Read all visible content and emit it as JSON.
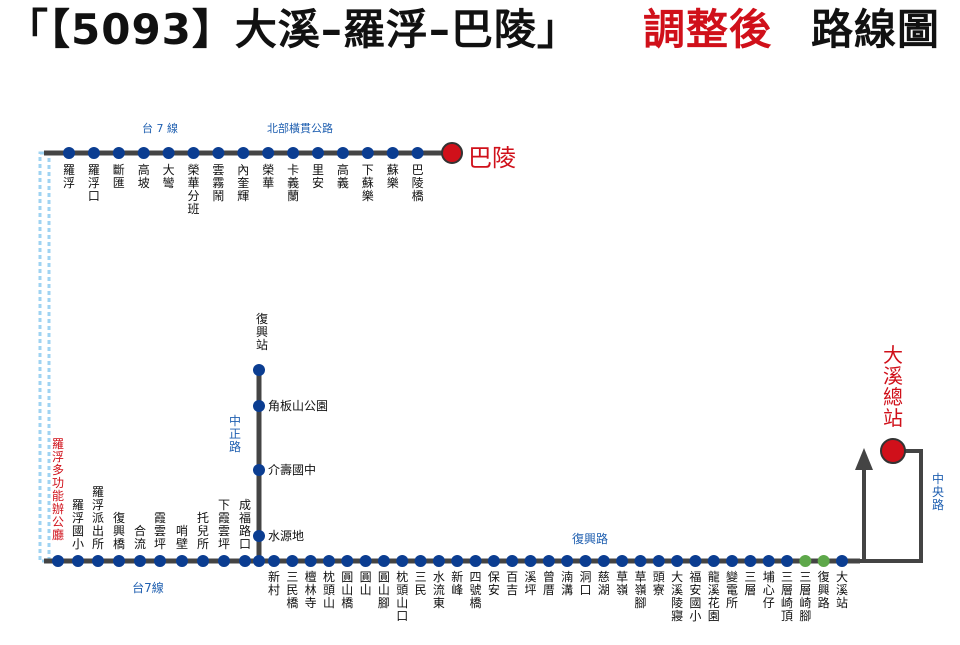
{
  "header": {
    "title_part1": "「【5093】大溪–羅浮–巴陵」",
    "title_part2": "調整後",
    "title_part3": "路線圖",
    "accent_color": "#d0101a"
  },
  "colors": {
    "route": "#444444",
    "stop": "#0b3d91",
    "road_label": "#1f5fb0",
    "terminal": "#d0101a",
    "dashed": "#9fd3f2",
    "arrow": "#5ea84a"
  },
  "roads": {
    "tai7_top": "台 7 線",
    "north_cross": "北部橫貫公路",
    "tai7_bottom": "台7線",
    "zhongzheng": "中正路",
    "fuxing": "復興路",
    "zhongyang": "中央路"
  },
  "terminals": {
    "baling": "巴陵",
    "daxi": "大溪總站",
    "luofu_office": "羅浮多功能辦公廳"
  },
  "top_stops": [
    "羅浮",
    "羅浮口",
    "斷匯",
    "高坡",
    "大彎",
    "榮華分班",
    "雲霧鬧",
    "內奎輝",
    "榮華",
    "卡義蘭",
    "里安",
    "高義",
    "下蘇樂",
    "蘇樂",
    "巴陵橋"
  ],
  "bottom_left_stops": [
    "羅浮國小",
    "羅浮派出所",
    "復興橋",
    "合流",
    "霞雲坪",
    "哨壁",
    "托兒所",
    "下霞雲坪",
    "成福路口"
  ],
  "branch_stops": [
    "復興站",
    "角板山公園",
    "介壽國中",
    "水源地"
  ],
  "bottom_right_stops": [
    "新村",
    "三民橋",
    "檀林寺",
    "枕頭山",
    "圓山橋",
    "圓山",
    "圓山腳",
    "枕頭山口",
    "三民",
    "水流東",
    "新峰",
    "四號橋",
    "保安",
    "百吉",
    "溪坪",
    "曾厝",
    "湳溝",
    "洞口",
    "慈湖",
    "草嶺",
    "草嶺腳",
    "頭寮",
    "大溪陵寢",
    "福安國小",
    "龍溪花園",
    "變電所",
    "三層",
    "埔心仔",
    "三層崎頂",
    "三層崎腳",
    "復興路",
    "大溪站"
  ]
}
